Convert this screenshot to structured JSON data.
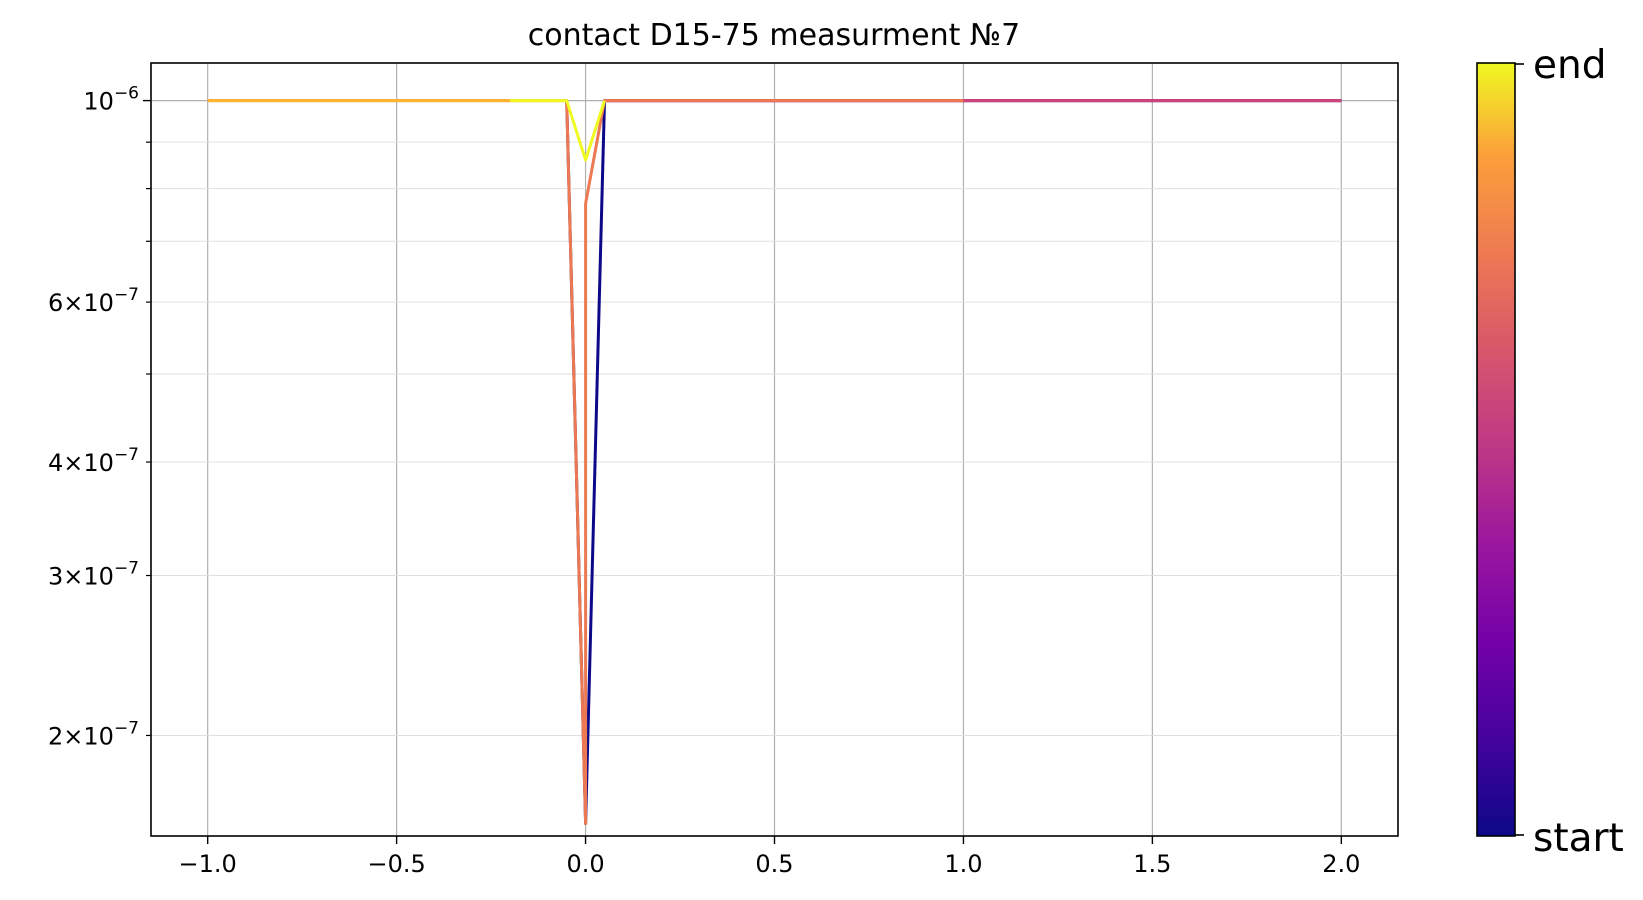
{
  "chart_data": {
    "type": "line",
    "title": "contact D15-75 measurment №7",
    "xlabel": "",
    "ylabel": "",
    "y_scale": "log",
    "xlim": [
      -1.15,
      2.15
    ],
    "ylim": [
      1.55e-07,
      1.1e-06
    ],
    "grid": true,
    "x_ticks": [
      {
        "value": -1.0,
        "label": "−1.0"
      },
      {
        "value": -0.5,
        "label": "−0.5"
      },
      {
        "value": 0.0,
        "label": "0.0"
      },
      {
        "value": 0.5,
        "label": "0.5"
      },
      {
        "value": 1.0,
        "label": "1.0"
      },
      {
        "value": 1.5,
        "label": "1.5"
      },
      {
        "value": 2.0,
        "label": "2.0"
      }
    ],
    "y_major_ticks": [
      {
        "value": 1e-06,
        "base": "10",
        "exp": "−6"
      }
    ],
    "y_minor_ticks": [
      {
        "value": 2e-07,
        "coef": "2",
        "exp": "−7"
      },
      {
        "value": 3e-07,
        "coef": "3",
        "exp": "−7"
      },
      {
        "value": 4e-07,
        "coef": "4",
        "exp": "−7"
      },
      {
        "value": 5e-07,
        "coef": "",
        "exp": ""
      },
      {
        "value": 6e-07,
        "coef": "6",
        "exp": "−7"
      },
      {
        "value": 7e-07,
        "coef": "",
        "exp": ""
      },
      {
        "value": 8e-07,
        "coef": "",
        "exp": ""
      },
      {
        "value": 9e-07,
        "coef": "",
        "exp": ""
      }
    ],
    "colormap": "plasma",
    "colorbar": {
      "bottom_label": "start",
      "top_label": "end"
    },
    "series": [
      {
        "color": "#0d0887",
        "x": [
          -0.05,
          0.0,
          0.05,
          1.0,
          2.0
        ],
        "y": [
          1e-06,
          1.6e-07,
          1e-06,
          1e-06,
          1e-06
        ]
      },
      {
        "color": "#9c179e",
        "x": [
          0.05,
          1.0,
          2.0
        ],
        "y": [
          1e-06,
          1e-06,
          1e-06
        ]
      },
      {
        "color": "#cc4778",
        "x": [
          0.05,
          1.0,
          2.0
        ],
        "y": [
          1e-06,
          1e-06,
          1e-06
        ]
      },
      {
        "color": "#ed7953",
        "x": [
          -1.0,
          -0.05,
          0.0,
          0.0,
          0.05,
          1.0
        ],
        "y": [
          1e-06,
          1e-06,
          1.6e-07,
          7.7e-07,
          1e-06,
          1e-06
        ]
      },
      {
        "color": "#fdb42f",
        "x": [
          -1.0,
          -0.5,
          -0.05
        ],
        "y": [
          1e-06,
          1e-06,
          1e-06
        ]
      },
      {
        "color": "#f0f921",
        "x": [
          -0.2,
          -0.05,
          0.0,
          0.05
        ],
        "y": [
          1e-06,
          1e-06,
          8.6e-07,
          1e-06
        ]
      }
    ]
  }
}
